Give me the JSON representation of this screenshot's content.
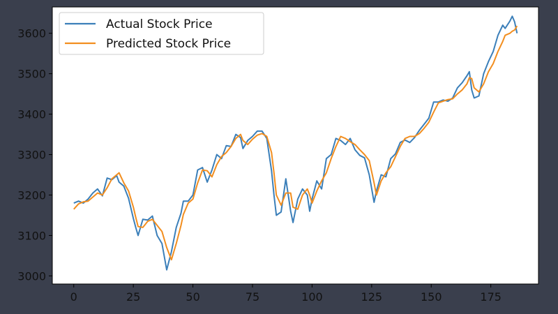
{
  "colors": {
    "background": "#3a3f4d",
    "plot_background": "#ffffff",
    "actual_series": "#3b7fb9",
    "predicted_series": "#f28e1f",
    "axis_text": "#111111"
  },
  "legend": {
    "placement": "top-left",
    "items": [
      {
        "label": "Actual Stock Price",
        "color": "#3b7fb9"
      },
      {
        "label": "Predicted Stock Price",
        "color": "#f28e1f"
      }
    ]
  },
  "chart_data": {
    "type": "line",
    "title": "",
    "xlabel": "",
    "ylabel": "",
    "xlim": [
      -9,
      195
    ],
    "ylim": [
      2980,
      3665
    ],
    "x_ticks": [
      0,
      25,
      50,
      75,
      100,
      125,
      150,
      175
    ],
    "y_ticks": [
      3000,
      3100,
      3200,
      3300,
      3400,
      3500,
      3600
    ],
    "grid": false,
    "series": [
      {
        "name": "Actual Stock Price",
        "color": "#3b7fb9",
        "points": [
          [
            0,
            3180
          ],
          [
            2,
            3185
          ],
          [
            4,
            3180
          ],
          [
            6,
            3190
          ],
          [
            8,
            3205
          ],
          [
            10,
            3215
          ],
          [
            12,
            3198
          ],
          [
            14,
            3242
          ],
          [
            16,
            3238
          ],
          [
            18,
            3248
          ],
          [
            19,
            3232
          ],
          [
            21,
            3222
          ],
          [
            23,
            3192
          ],
          [
            25,
            3142
          ],
          [
            26,
            3120
          ],
          [
            27,
            3100
          ],
          [
            29,
            3140
          ],
          [
            31,
            3138
          ],
          [
            33,
            3148
          ],
          [
            35,
            3100
          ],
          [
            37,
            3080
          ],
          [
            39,
            3015
          ],
          [
            41,
            3060
          ],
          [
            43,
            3120
          ],
          [
            45,
            3155
          ],
          [
            46,
            3185
          ],
          [
            48,
            3185
          ],
          [
            50,
            3200
          ],
          [
            52,
            3262
          ],
          [
            54,
            3268
          ],
          [
            56,
            3232
          ],
          [
            58,
            3262
          ],
          [
            60,
            3300
          ],
          [
            62,
            3290
          ],
          [
            64,
            3322
          ],
          [
            66,
            3320
          ],
          [
            68,
            3350
          ],
          [
            70,
            3342
          ],
          [
            71,
            3315
          ],
          [
            73,
            3335
          ],
          [
            75,
            3345
          ],
          [
            77,
            3358
          ],
          [
            79,
            3358
          ],
          [
            81,
            3340
          ],
          [
            83,
            3260
          ],
          [
            84,
            3200
          ],
          [
            85,
            3150
          ],
          [
            87,
            3158
          ],
          [
            89,
            3240
          ],
          [
            91,
            3160
          ],
          [
            92,
            3132
          ],
          [
            94,
            3190
          ],
          [
            96,
            3215
          ],
          [
            98,
            3200
          ],
          [
            99,
            3160
          ],
          [
            100,
            3190
          ],
          [
            102,
            3235
          ],
          [
            104,
            3215
          ],
          [
            106,
            3290
          ],
          [
            108,
            3300
          ],
          [
            110,
            3340
          ],
          [
            112,
            3335
          ],
          [
            114,
            3325
          ],
          [
            116,
            3340
          ],
          [
            118,
            3312
          ],
          [
            120,
            3298
          ],
          [
            122,
            3292
          ],
          [
            124,
            3250
          ],
          [
            126,
            3182
          ],
          [
            127,
            3210
          ],
          [
            129,
            3250
          ],
          [
            131,
            3245
          ],
          [
            133,
            3290
          ],
          [
            135,
            3302
          ],
          [
            137,
            3330
          ],
          [
            139,
            3336
          ],
          [
            141,
            3330
          ],
          [
            143,
            3342
          ],
          [
            145,
            3360
          ],
          [
            147,
            3375
          ],
          [
            149,
            3390
          ],
          [
            151,
            3430
          ],
          [
            153,
            3430
          ],
          [
            155,
            3435
          ],
          [
            157,
            3432
          ],
          [
            159,
            3440
          ],
          [
            161,
            3465
          ],
          [
            163,
            3478
          ],
          [
            165,
            3495
          ],
          [
            166,
            3505
          ],
          [
            167,
            3460
          ],
          [
            168,
            3440
          ],
          [
            170,
            3445
          ],
          [
            172,
            3500
          ],
          [
            174,
            3530
          ],
          [
            176,
            3555
          ],
          [
            178,
            3595
          ],
          [
            180,
            3620
          ],
          [
            181,
            3612
          ],
          [
            183,
            3630
          ],
          [
            184,
            3642
          ],
          [
            185,
            3628
          ],
          [
            186,
            3600
          ]
        ]
      },
      {
        "name": "Predicted Stock Price",
        "color": "#f28e1f",
        "points": [
          [
            0,
            3165
          ],
          [
            2,
            3178
          ],
          [
            4,
            3183
          ],
          [
            6,
            3185
          ],
          [
            8,
            3195
          ],
          [
            10,
            3205
          ],
          [
            12,
            3200
          ],
          [
            14,
            3218
          ],
          [
            16,
            3240
          ],
          [
            18,
            3250
          ],
          [
            19,
            3255
          ],
          [
            21,
            3230
          ],
          [
            23,
            3210
          ],
          [
            25,
            3170
          ],
          [
            26,
            3145
          ],
          [
            27,
            3122
          ],
          [
            29,
            3120
          ],
          [
            31,
            3135
          ],
          [
            33,
            3140
          ],
          [
            35,
            3125
          ],
          [
            37,
            3110
          ],
          [
            39,
            3070
          ],
          [
            41,
            3040
          ],
          [
            43,
            3080
          ],
          [
            45,
            3125
          ],
          [
            46,
            3152
          ],
          [
            48,
            3180
          ],
          [
            50,
            3190
          ],
          [
            52,
            3230
          ],
          [
            54,
            3262
          ],
          [
            56,
            3260
          ],
          [
            58,
            3245
          ],
          [
            60,
            3275
          ],
          [
            62,
            3295
          ],
          [
            64,
            3305
          ],
          [
            66,
            3320
          ],
          [
            68,
            3340
          ],
          [
            70,
            3350
          ],
          [
            71,
            3335
          ],
          [
            73,
            3325
          ],
          [
            75,
            3338
          ],
          [
            77,
            3348
          ],
          [
            79,
            3352
          ],
          [
            81,
            3345
          ],
          [
            83,
            3305
          ],
          [
            84,
            3255
          ],
          [
            85,
            3200
          ],
          [
            87,
            3175
          ],
          [
            89,
            3205
          ],
          [
            91,
            3205
          ],
          [
            92,
            3170
          ],
          [
            94,
            3165
          ],
          [
            96,
            3200
          ],
          [
            98,
            3215
          ],
          [
            99,
            3200
          ],
          [
            100,
            3180
          ],
          [
            102,
            3210
          ],
          [
            104,
            3235
          ],
          [
            106,
            3255
          ],
          [
            108,
            3290
          ],
          [
            110,
            3320
          ],
          [
            112,
            3345
          ],
          [
            114,
            3340
          ],
          [
            116,
            3332
          ],
          [
            118,
            3325
          ],
          [
            120,
            3312
          ],
          [
            122,
            3300
          ],
          [
            124,
            3285
          ],
          [
            126,
            3230
          ],
          [
            127,
            3200
          ],
          [
            129,
            3235
          ],
          [
            131,
            3255
          ],
          [
            133,
            3270
          ],
          [
            135,
            3295
          ],
          [
            137,
            3320
          ],
          [
            139,
            3340
          ],
          [
            141,
            3345
          ],
          [
            143,
            3345
          ],
          [
            145,
            3352
          ],
          [
            147,
            3365
          ],
          [
            149,
            3380
          ],
          [
            151,
            3405
          ],
          [
            153,
            3428
          ],
          [
            155,
            3432
          ],
          [
            157,
            3436
          ],
          [
            159,
            3438
          ],
          [
            161,
            3450
          ],
          [
            163,
            3460
          ],
          [
            165,
            3475
          ],
          [
            166,
            3490
          ],
          [
            167,
            3488
          ],
          [
            168,
            3465
          ],
          [
            170,
            3455
          ],
          [
            172,
            3475
          ],
          [
            174,
            3505
          ],
          [
            176,
            3525
          ],
          [
            178,
            3555
          ],
          [
            180,
            3580
          ],
          [
            181,
            3595
          ],
          [
            183,
            3600
          ],
          [
            184,
            3605
          ],
          [
            185,
            3608
          ],
          [
            186,
            3618
          ]
        ]
      }
    ]
  }
}
